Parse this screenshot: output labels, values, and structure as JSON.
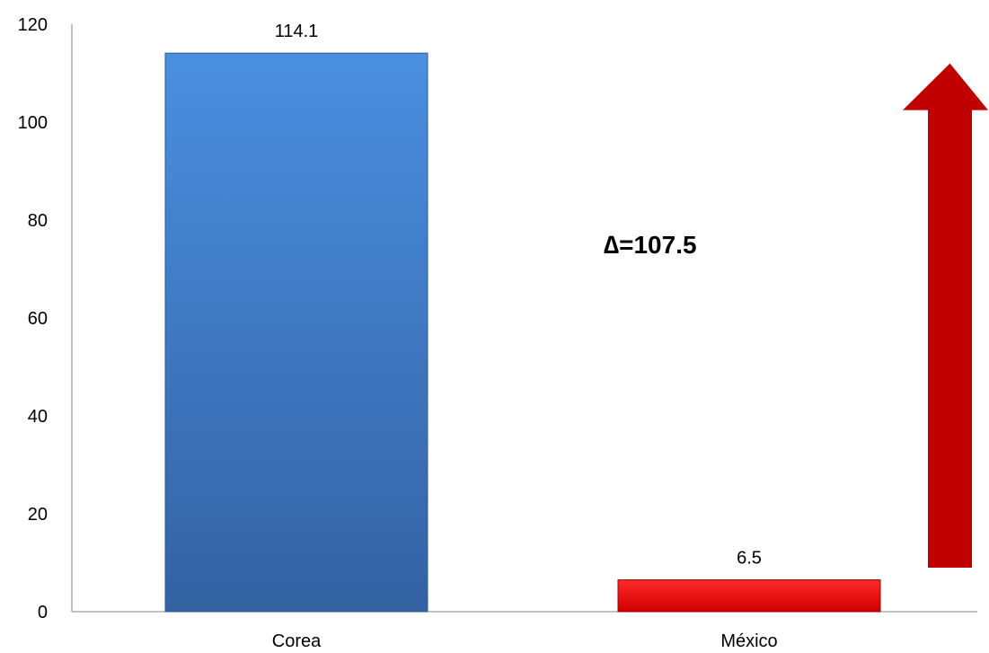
{
  "chart_data": {
    "type": "bar",
    "categories": [
      "Corea",
      "México"
    ],
    "values": [
      114.1,
      6.5
    ],
    "value_labels": [
      "114.1",
      "6.5"
    ],
    "ylim": [
      0,
      120
    ],
    "yticks": [
      0,
      20,
      40,
      60,
      80,
      100,
      120
    ],
    "title": "",
    "xlabel": "",
    "ylabel": "",
    "grid": false,
    "bar_colors": [
      "#3F7DC9",
      "#E00000"
    ],
    "annotation": {
      "text": "∆=107.5"
    },
    "arrow": {
      "color": "#C00000",
      "direction": "up",
      "from_value": 9,
      "to_value": 112
    }
  }
}
